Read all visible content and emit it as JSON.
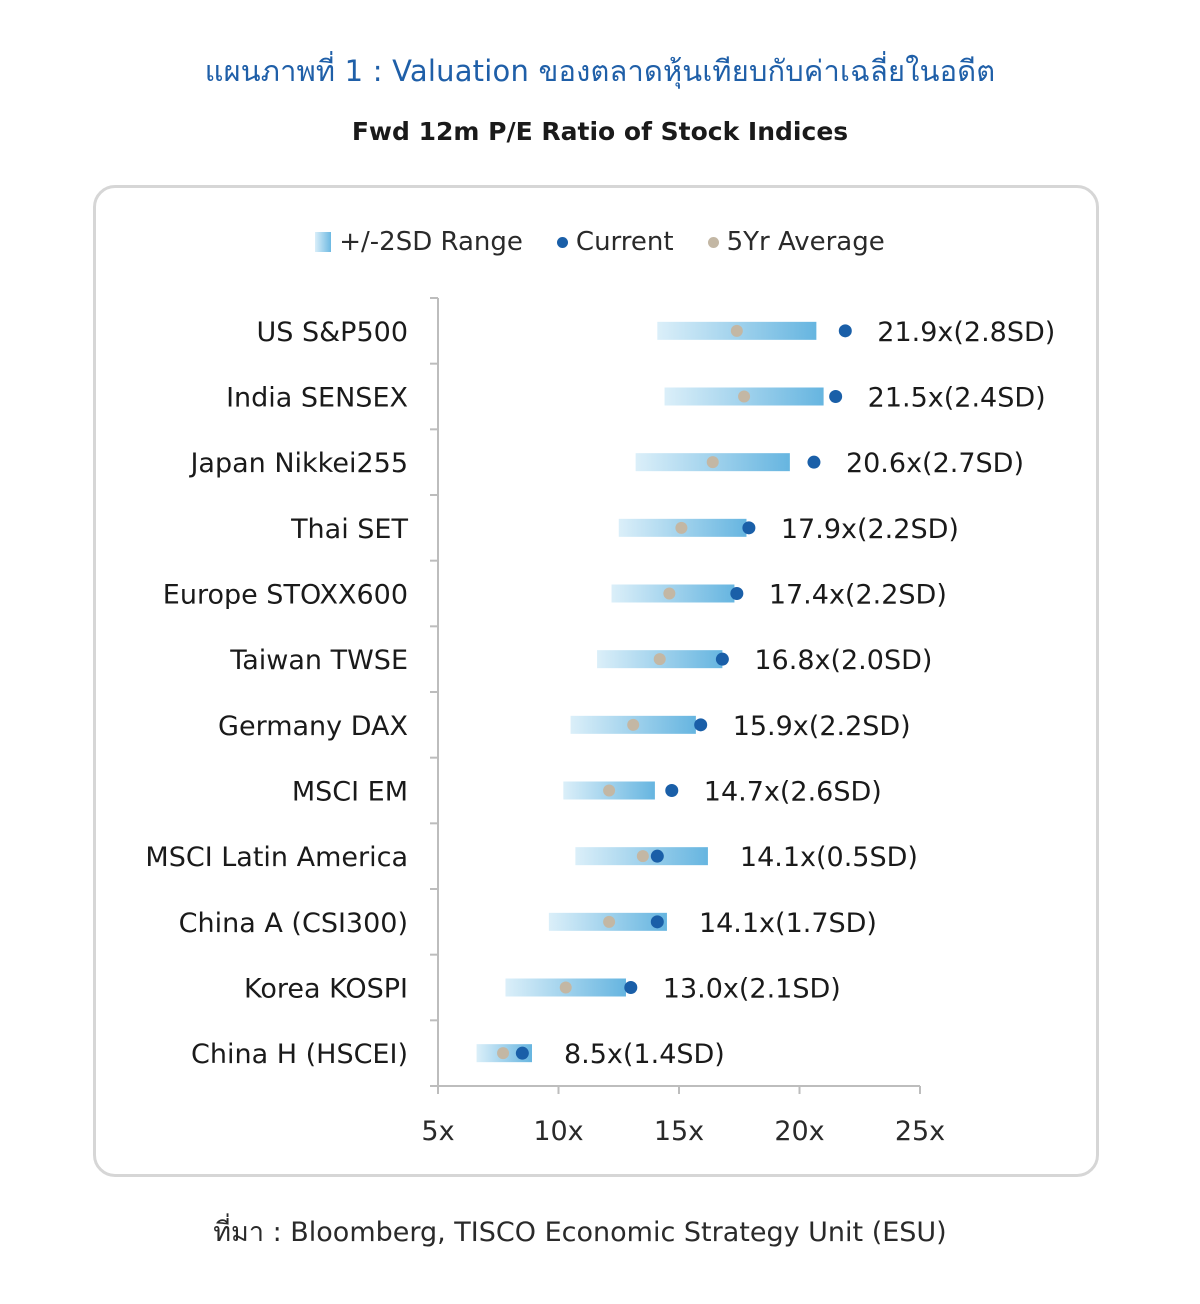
{
  "header": {
    "title": "แผนภาพที่ 1 : Valuation ของตลาดหุ้นเทียบกับค่าเฉลี่ยในอดีต",
    "subtitle": "Fwd 12m P/E Ratio of Stock Indices"
  },
  "legend": {
    "range_label": "+/-2SD Range",
    "current_label": "Current",
    "avg_label": "5Yr Average"
  },
  "colors": {
    "title_blue": "#1f5fa8",
    "current_dot": "#1a5fa8",
    "avg_dot": "#c3b7a4",
    "range_light": "#d9eef9",
    "range_dark": "#6db9e2"
  },
  "chart_data": {
    "type": "range-dot",
    "title": "Fwd 12m P/E Ratio of Stock Indices",
    "xlabel": "",
    "ylabel": "",
    "xlim": [
      5,
      25
    ],
    "x_ticks": [
      "5x",
      "10x",
      "15x",
      "20x",
      "25x"
    ],
    "x_tick_values": [
      5,
      10,
      15,
      20,
      25
    ],
    "series_names": [
      "+/-2SD Range",
      "Current",
      "5Yr Average"
    ],
    "rows": [
      {
        "name": "US S&P500",
        "range_low": 14.1,
        "range_high": 20.7,
        "current": 21.9,
        "avg": 17.4,
        "label": "21.9x(2.8SD)"
      },
      {
        "name": "India SENSEX",
        "range_low": 14.4,
        "range_high": 21.0,
        "current": 21.5,
        "avg": 17.7,
        "label": "21.5x(2.4SD)"
      },
      {
        "name": "Japan Nikkei255",
        "range_low": 13.2,
        "range_high": 19.6,
        "current": 20.6,
        "avg": 16.4,
        "label": "20.6x(2.7SD)"
      },
      {
        "name": "Thai SET",
        "range_low": 12.5,
        "range_high": 17.8,
        "current": 17.9,
        "avg": 15.1,
        "label": "17.9x(2.2SD)"
      },
      {
        "name": "Europe STOXX600",
        "range_low": 12.2,
        "range_high": 17.3,
        "current": 17.4,
        "avg": 14.6,
        "label": "17.4x(2.2SD)"
      },
      {
        "name": "Taiwan TWSE",
        "range_low": 11.6,
        "range_high": 16.8,
        "current": 16.8,
        "avg": 14.2,
        "label": "16.8x(2.0SD)"
      },
      {
        "name": "Germany DAX",
        "range_low": 10.5,
        "range_high": 15.7,
        "current": 15.9,
        "avg": 13.1,
        "label": "15.9x(2.2SD)"
      },
      {
        "name": "MSCI EM",
        "range_low": 10.2,
        "range_high": 14.0,
        "current": 14.7,
        "avg": 12.1,
        "label": "14.7x(2.6SD)"
      },
      {
        "name": "MSCI Latin America",
        "range_low": 10.7,
        "range_high": 16.2,
        "current": 14.1,
        "avg": 13.5,
        "label": "14.1x(0.5SD)"
      },
      {
        "name": "China A (CSI300)",
        "range_low": 9.6,
        "range_high": 14.5,
        "current": 14.1,
        "avg": 12.1,
        "label": "14.1x(1.7SD)"
      },
      {
        "name": "Korea KOSPI",
        "range_low": 7.8,
        "range_high": 12.8,
        "current": 13.0,
        "avg": 10.3,
        "label": "13.0x(2.1SD)"
      },
      {
        "name": "China H (HSCEI)",
        "range_low": 6.6,
        "range_high": 8.9,
        "current": 8.5,
        "avg": 7.7,
        "label": "8.5x(1.4SD)"
      }
    ]
  },
  "footer": {
    "source": "ที่มา : Bloomberg, TISCO Economic Strategy Unit (ESU)"
  }
}
